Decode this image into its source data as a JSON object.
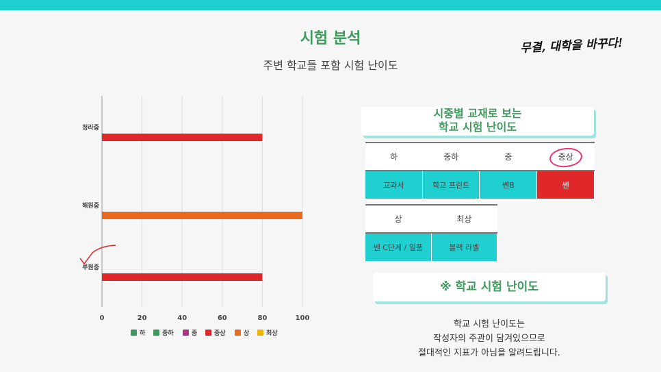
{
  "header": {
    "title": "시험 분석",
    "subtitle": "주변 학교들 포함 시험 난이도",
    "slogan": "무결, 대학을 바꾸다!"
  },
  "chart_data": {
    "type": "bar",
    "orientation": "horizontal",
    "categories": [
      "청라중",
      "해원중",
      "루원중"
    ],
    "values": [
      80,
      100,
      80
    ],
    "bar_levels": [
      "중상",
      "상",
      "중상"
    ],
    "xlim": [
      0,
      100
    ],
    "xticks": [
      0,
      20,
      40,
      60,
      80,
      100
    ],
    "grid": true,
    "legend_position": "bottom",
    "legend": [
      {
        "label": "하",
        "color": "#3d9a5e"
      },
      {
        "label": "중하",
        "color": "#3d9a5e"
      },
      {
        "label": "중",
        "color": "#b03185"
      },
      {
        "label": "중상",
        "color": "#e0282a"
      },
      {
        "label": "상",
        "color": "#e86a1e"
      },
      {
        "label": "최상",
        "color": "#f0b400"
      }
    ]
  },
  "textbook_card": {
    "line1": "시중별 교재로 보는",
    "line2": "학교 시험 난이도"
  },
  "table1": {
    "headers": [
      "하",
      "중하",
      "중",
      "중상"
    ],
    "values": [
      "교과서",
      "학교 프린트",
      "쎈B",
      "쎈"
    ],
    "highlight_index": 3
  },
  "table2": {
    "headers": [
      "상",
      "최상"
    ],
    "values": [
      "쎈 C단계 / 일품",
      "블랙 라벨"
    ]
  },
  "difficulty_card": {
    "text": "※ 학교 시험 난이도"
  },
  "note": {
    "line1": "학교 시험 난이도는",
    "line2": "작성자의 주관이 담겨있으므로",
    "line3": "절대적인 지표가 아님을 알려드립니다."
  },
  "colors": {
    "accent_teal": "#1fcfcf",
    "title_green": "#3e9a5c",
    "highlight_red": "#e0282a"
  }
}
